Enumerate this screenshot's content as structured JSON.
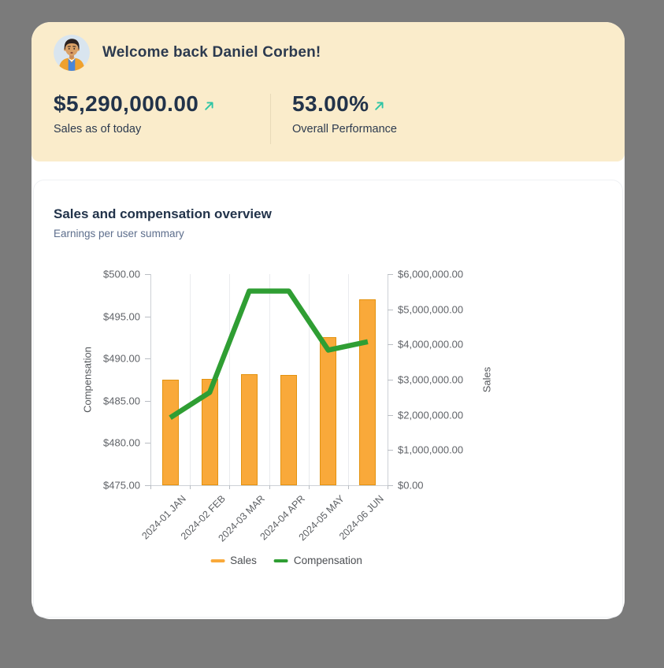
{
  "colors": {
    "page_bg": "#7b7b7b",
    "header_bg": "#FAECCB",
    "card_bg": "#ffffff",
    "title_text": "#22334A",
    "subtitle_text": "#5D6E8C",
    "accent_teal": "#2EC5A5",
    "bar_fill": "#F9A93A",
    "bar_border": "#E39310",
    "line_green": "#2F9E33",
    "divider": "#E8DAB9"
  },
  "header": {
    "avatar_icon": "man-avatar",
    "welcome": "Welcome back Daniel Corben!",
    "trend_icon": "arrow-up-right",
    "stats": [
      {
        "value": "$5,290,000.00",
        "label": "Sales as of today"
      },
      {
        "value": "53.00%",
        "label": "Overall Performance"
      }
    ]
  },
  "chart_card": {
    "title": "Sales and compensation overview",
    "subtitle": "Earnings per user summary"
  },
  "chart_data": {
    "type": "bar",
    "subtype": "combo-bar-line-dual-axis",
    "title": "Sales and compensation overview",
    "categories": [
      "2024-01 JAN",
      "2024-02 FEB",
      "2024-03 MAR",
      "2024-04 APR",
      "2024-05 MAY",
      "2024-06 JUN"
    ],
    "series": [
      {
        "name": "Sales",
        "type": "bar",
        "y_axis": "right",
        "color": "#F9A93A",
        "border_color": "#E39310",
        "values": [
          3000000,
          3020000,
          3160000,
          3130000,
          4200000,
          5290000
        ]
      },
      {
        "name": "Compensation",
        "type": "line",
        "y_axis": "left",
        "color": "#2F9E33",
        "values": [
          483,
          486,
          498,
          498,
          491,
          492
        ]
      }
    ],
    "left_axis": {
      "label": "Compensation",
      "min": 475,
      "max": 500,
      "tick_step": 5,
      "tick_labels": [
        "$500.00",
        "$495.00",
        "$490.00",
        "$485.00",
        "$480.00",
        "$475.00"
      ]
    },
    "right_axis": {
      "label": "Sales",
      "min": 0,
      "max": 6000000,
      "tick_step": 1000000,
      "tick_labels": [
        "$6,000,000.00",
        "$5,000,000.00",
        "$4,000,000.00",
        "$3,000,000.00",
        "$2,000,000.00",
        "$1,000,000.00",
        "$0.00"
      ]
    },
    "x_tick_rotation": -45,
    "grid": "vertical-only",
    "legend": {
      "position": "bottom",
      "items": [
        "Sales",
        "Compensation"
      ]
    }
  }
}
